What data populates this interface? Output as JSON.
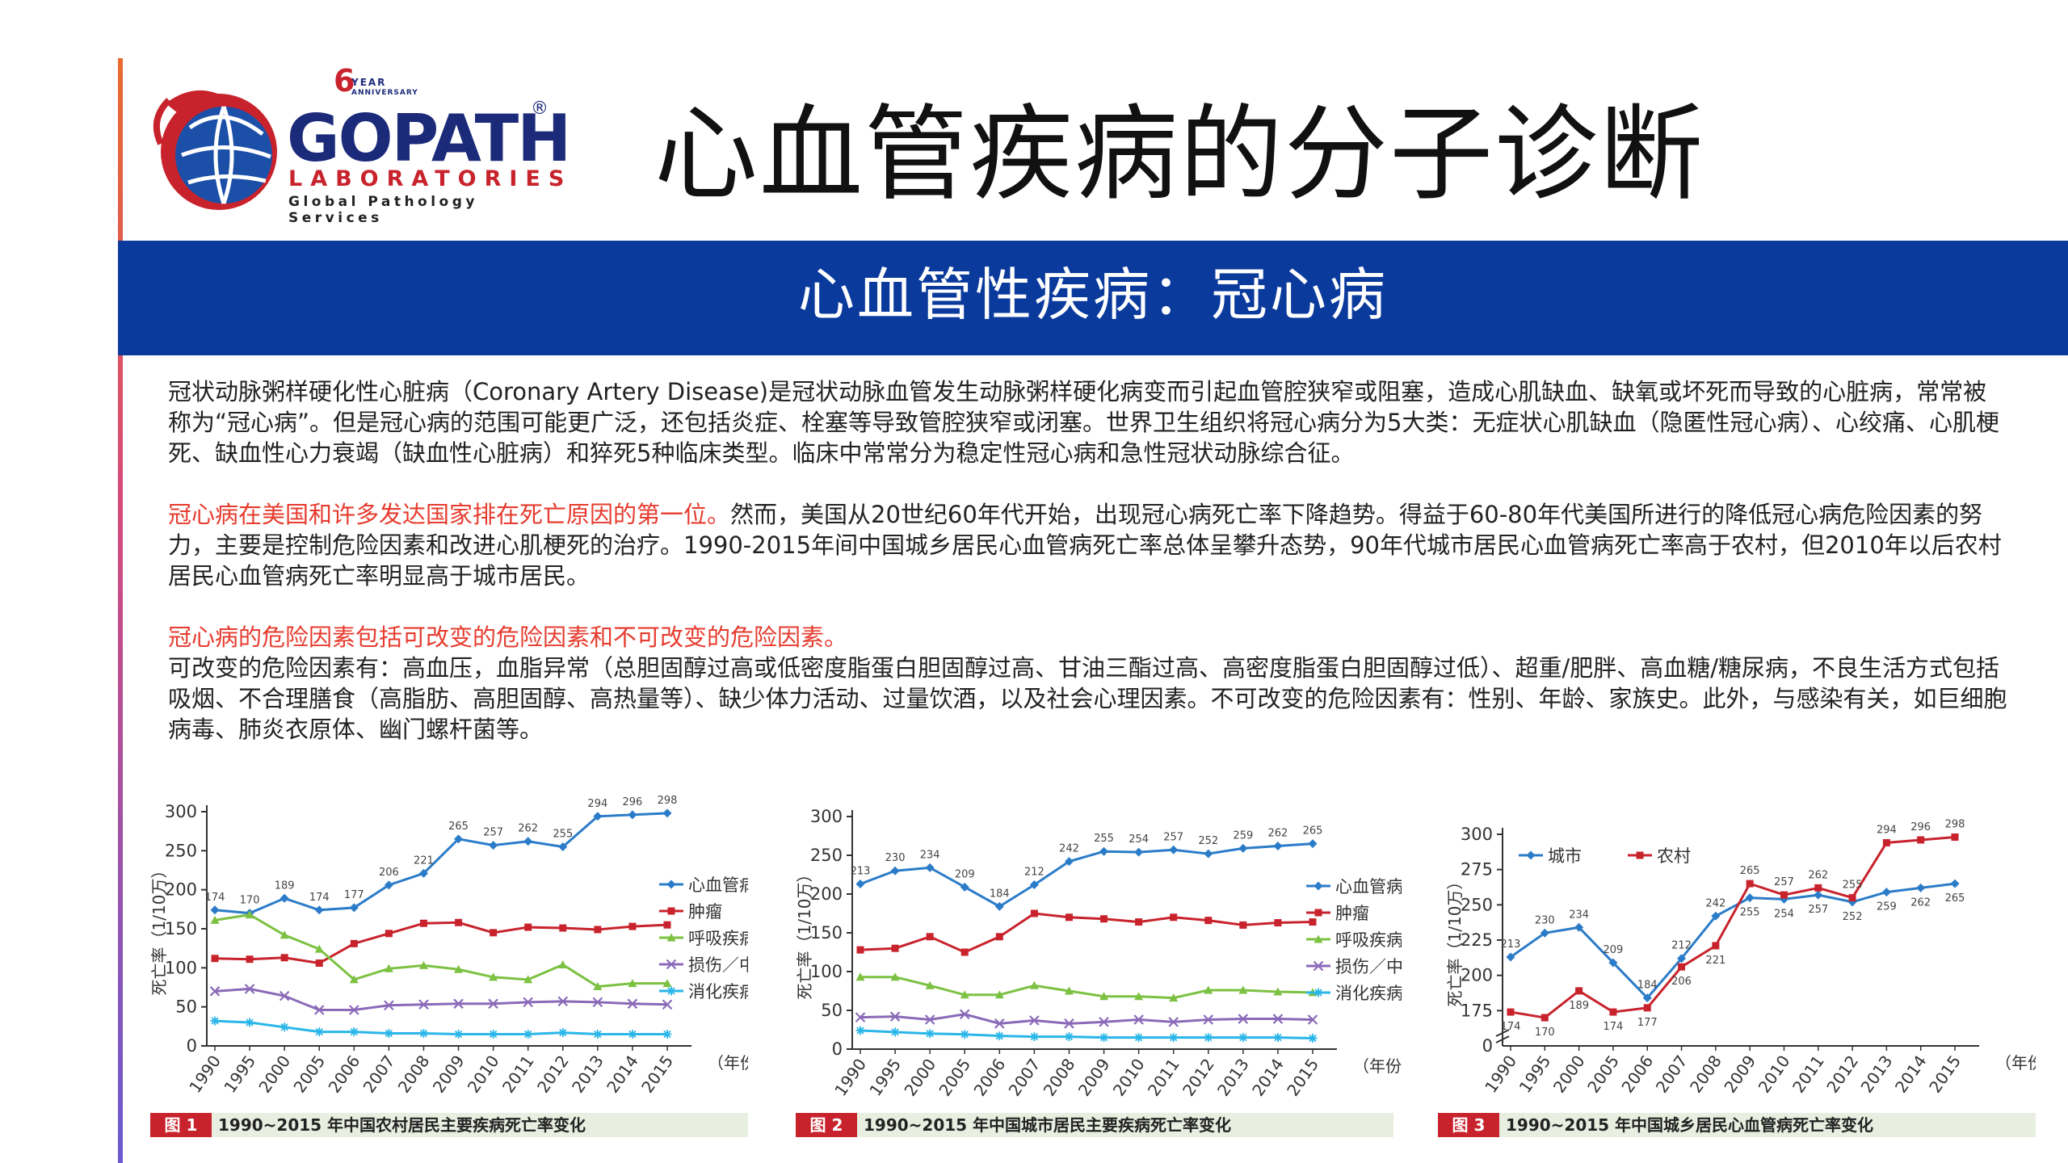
{
  "logo": {
    "anniversary_digit": "6",
    "anniversary_line1": "YEAR",
    "anniversary_line2": "ANNIVERSARY",
    "brand": "GOPATH",
    "registered": "®",
    "laboratories": "LABORATORIES",
    "tagline": "Global Pathology Services"
  },
  "title": "心血管疾病的分子诊断",
  "banner": "心血管性疾病：冠心病",
  "paragraphs": {
    "p1": "冠状动脉粥样硬化性心脏病（Coronary Artery Disease)是冠状动脉血管发生动脉粥样硬化病变而引起血管腔狭窄或阻塞，造成心肌缺血、缺氧或坏死而导致的心脏病，常常被称为“冠心病”。但是冠心病的范围可能更广泛，还包括炎症、栓塞等导致管腔狭窄或闭塞。世界卫生组织将冠心病分为5大类：无症状心肌缺血（隐匿性冠心病）、心绞痛、心肌梗死、缺血性心力衰竭（缺血性心脏病）和猝死5种临床类型。临床中常常分为稳定性冠心病和急性冠状动脉综合征。",
    "p2_red": "冠心病在美国和许多发达国家排在死亡原因的第一位。",
    "p2_rest": "然而，美国从20世纪60年代开始，出现冠心病死亡率下降趋势。得益于60-80年代美国所进行的降低冠心病危险因素的努力，主要是控制危险因素和改进心肌梗死的治疗。1990-2015年间中国城乡居民心血管病死亡率总体呈攀升态势，90年代城市居民心血管病死亡率高于农村，但2010年以后农村居民心血管病死亡率明显高于城市居民。",
    "p3_red": "冠心病的危险因素包括可改变的危险因素和不可改变的危险因素。",
    "p4": "可改变的危险因素有：高血压，血脂异常（总胆固醇过高或低密度脂蛋白胆固醇过高、甘油三酯过高、高密度脂蛋白胆固醇过低）、超重/肥胖、高血糖/糖尿病，不良生活方式包括吸烟、不合理膳食（高脂肪、高胆固醇、高热量等）、缺少体力活动、过量饮酒，以及社会心理因素。不可改变的危险因素有：性别、年龄、家族史。此外，与感染有关，如巨细胞病毒、肺炎衣原体、幽门螺杆菌等。"
  },
  "colors": {
    "blue": "#2b7cc8",
    "red": "#c8232c",
    "green": "#7cc142",
    "purple": "#8a6ab8",
    "cyan": "#2ab6e8",
    "banner": "#0a3a9c",
    "caption_bg": "#e8eee0",
    "caption_tag": "#c8232c"
  },
  "chart_data": [
    {
      "type": "line",
      "x": [
        "1990",
        "1995",
        "2000",
        "2005",
        "2006",
        "2007",
        "2008",
        "2009",
        "2010",
        "2011",
        "2012",
        "2013",
        "2014",
        "2015"
      ],
      "xunit": "（年份）",
      "ylabel": "死亡率（1/10万）",
      "ylim": [
        0,
        300
      ],
      "yticks": [
        0,
        50,
        100,
        150,
        200,
        250,
        300
      ],
      "grid": false,
      "legend_position": "right",
      "series": [
        {
          "name": "心血管病",
          "color": "#2b7cc8",
          "marker": "diamond",
          "labeled": true,
          "values": [
            174,
            170,
            189,
            174,
            177,
            206,
            221,
            265,
            257,
            262,
            255,
            294,
            296,
            298
          ]
        },
        {
          "name": "肿瘤",
          "color": "#c8232c",
          "marker": "square",
          "values": [
            112,
            111,
            113,
            106,
            131,
            144,
            157,
            158,
            145,
            152,
            151,
            149,
            153,
            155
          ]
        },
        {
          "name": "呼吸疾病",
          "color": "#7cc142",
          "marker": "triangle",
          "values": [
            161,
            168,
            142,
            124,
            85,
            99,
            103,
            98,
            88,
            85,
            104,
            76,
            80,
            80
          ]
        },
        {
          "name": "损伤／中毒",
          "color": "#8a6ab8",
          "marker": "x",
          "values": [
            70,
            73,
            64,
            46,
            46,
            52,
            53,
            54,
            54,
            56,
            57,
            56,
            54,
            53
          ]
        },
        {
          "name": "消化疾病",
          "color": "#2ab6e8",
          "marker": "star",
          "values": [
            32,
            30,
            24,
            18,
            18,
            16,
            16,
            15,
            15,
            15,
            17,
            15,
            15,
            15
          ]
        }
      ],
      "caption_tag": "图 1",
      "caption": "1990~2015 年中国农村居民主要疾病死亡率变化"
    },
    {
      "type": "line",
      "x": [
        "1990",
        "1995",
        "2000",
        "2005",
        "2006",
        "2007",
        "2008",
        "2009",
        "2010",
        "2011",
        "2012",
        "2013",
        "2014",
        "2015"
      ],
      "xunit": "（年份）",
      "ylabel": "死亡率（1/10万）",
      "ylim": [
        0,
        300
      ],
      "yticks": [
        0,
        50,
        100,
        150,
        200,
        250,
        300
      ],
      "grid": false,
      "legend_position": "right",
      "series": [
        {
          "name": "心血管病",
          "color": "#2b7cc8",
          "marker": "diamond",
          "labeled": true,
          "values": [
            213,
            230,
            234,
            209,
            184,
            212,
            242,
            255,
            254,
            257,
            252,
            259,
            262,
            265
          ]
        },
        {
          "name": "肿瘤",
          "color": "#c8232c",
          "marker": "square",
          "values": [
            128,
            130,
            145,
            125,
            145,
            175,
            170,
            168,
            164,
            170,
            166,
            160,
            163,
            164
          ]
        },
        {
          "name": "呼吸疾病",
          "color": "#7cc142",
          "marker": "triangle",
          "values": [
            93,
            93,
            82,
            70,
            70,
            82,
            75,
            68,
            68,
            66,
            76,
            76,
            74,
            73
          ]
        },
        {
          "name": "损伤／中毒",
          "color": "#8a6ab8",
          "marker": "x",
          "values": [
            41,
            42,
            38,
            45,
            33,
            37,
            33,
            35,
            38,
            35,
            38,
            39,
            39,
            38
          ]
        },
        {
          "name": "消化疾病",
          "color": "#2ab6e8",
          "marker": "star",
          "values": [
            24,
            22,
            20,
            19,
            17,
            16,
            16,
            15,
            15,
            15,
            15,
            15,
            15,
            14
          ]
        }
      ],
      "caption_tag": "图 2",
      "caption": "1990~2015 年中国城市居民主要疾病死亡率变化"
    },
    {
      "type": "line",
      "x": [
        "1990",
        "1995",
        "2000",
        "2005",
        "2006",
        "2007",
        "2008",
        "2009",
        "2010",
        "2011",
        "2012",
        "2013",
        "2014",
        "2015"
      ],
      "xunit": "（年份）",
      "ylabel": "死亡率（1/10万）",
      "ylim": [
        150,
        300
      ],
      "yticks": [
        175,
        200,
        225,
        250,
        275,
        300
      ],
      "axis_break": true,
      "grid": false,
      "legend_position": "top-left",
      "series": [
        {
          "name": "城市",
          "color": "#2b7cc8",
          "marker": "diamond",
          "labeled": true,
          "values": [
            213,
            230,
            234,
            209,
            184,
            212,
            242,
            255,
            254,
            257,
            252,
            259,
            262,
            265
          ]
        },
        {
          "name": "农村",
          "color": "#c8232c",
          "marker": "square",
          "labeled": true,
          "values": [
            174,
            170,
            189,
            174,
            177,
            206,
            221,
            265,
            257,
            262,
            255,
            294,
            296,
            298
          ]
        }
      ],
      "caption_tag": "图 3",
      "caption": "1990~2015 年中国城乡居民心血管病死亡率变化"
    }
  ]
}
